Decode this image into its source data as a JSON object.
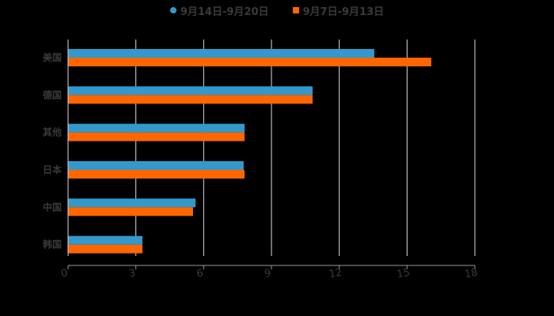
{
  "legend": {
    "series": [
      {
        "name": "9月14日-9月20日",
        "color": "#3399cc",
        "marker": "circle"
      },
      {
        "name": "9月7日-9月13日",
        "color": "#ff6600",
        "marker": "square"
      }
    ]
  },
  "chart_data": {
    "type": "bar",
    "orientation": "horizontal",
    "title": "",
    "xlabel": "",
    "ylabel": "",
    "categories": [
      "美国",
      "德国",
      "其他",
      "日本",
      "中国",
      "韩国"
    ],
    "series": [
      {
        "name": "9月14日-9月20日",
        "color": "#3399cc",
        "values": [
          13.55,
          10.82,
          7.81,
          7.77,
          5.64,
          3.29
        ]
      },
      {
        "name": "9月7日-9月13日",
        "color": "#ff6600",
        "values": [
          16.07,
          10.82,
          7.81,
          7.81,
          5.53,
          3.29
        ]
      }
    ],
    "xlim": [
      0,
      18
    ],
    "xticks": [
      0,
      3,
      6,
      9,
      12,
      15,
      18
    ],
    "grid": true,
    "legend_position": "top"
  }
}
